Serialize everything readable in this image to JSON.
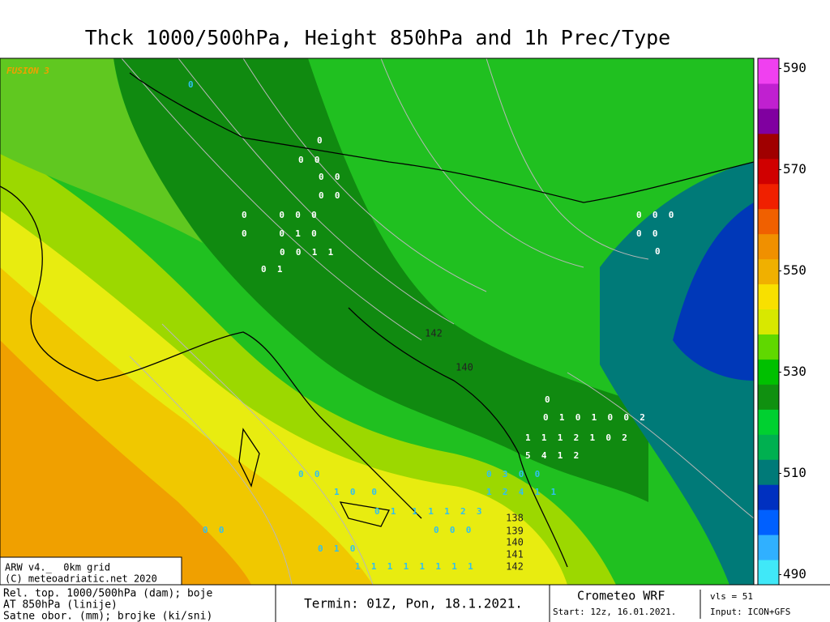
{
  "title": "Thck 1000/500hPa, Height 850hPa and 1h Prec/Type",
  "map": {
    "watermark": "FUSION 3",
    "contour_labels": [
      "142",
      "140",
      "138",
      "139",
      "140",
      "141",
      "142"
    ],
    "precip_labels": [
      "0",
      "0  0",
      "0  0",
      "0  0",
      "0      0  0  0",
      "0      0  1  0",
      "0  0  1  1",
      "0  1",
      "0  0  0",
      "0  0",
      "0",
      "0",
      "0  1  0  1  0  0  2",
      "1  1  1  2  1  0  2",
      "5  4  1  2",
      "0  3  0  0",
      "1  2  4  1  1",
      "0  0",
      "1  0   0",
      "0  1   1  1  1  2  3",
      "0  0  0",
      "0  1  0",
      "1  1  1  1  1  1  1  1",
      "0  0",
      "0"
    ]
  },
  "info_box": [
    "ARW v4._  0km grid",
    "(C) meteoadriatic.net 2020"
  ],
  "footer": {
    "legend": [
      "Rel. top. 1000/500hPa (dam); boje",
      "AT 850hPa (linije)",
      "Satne obor. (mm); brojke (ki/sni)"
    ],
    "valid": "Termin: 01Z, Pon, 18.1.2021.",
    "model": "Crometeo WRF",
    "vls": "vls = 51",
    "start": "Start: 12z, 16.01.2021.",
    "input": "Input: ICON+GFS"
  },
  "colorbar": {
    "lim": [
      488,
      592
    ],
    "ticks": [
      490,
      510,
      530,
      550,
      570,
      590
    ],
    "colors": [
      "#40e8f8",
      "#30b0ff",
      "#0060ff",
      "#0030c0",
      "#007a78",
      "#00b050",
      "#00d030",
      "#109010",
      "#00c000",
      "#60d800",
      "#d8e800",
      "#f8e000",
      "#f0b000",
      "#f09000",
      "#f06000",
      "#f02000",
      "#d00000",
      "#a00000",
      "#8000a0",
      "#c020d0",
      "#f040f0"
    ]
  }
}
